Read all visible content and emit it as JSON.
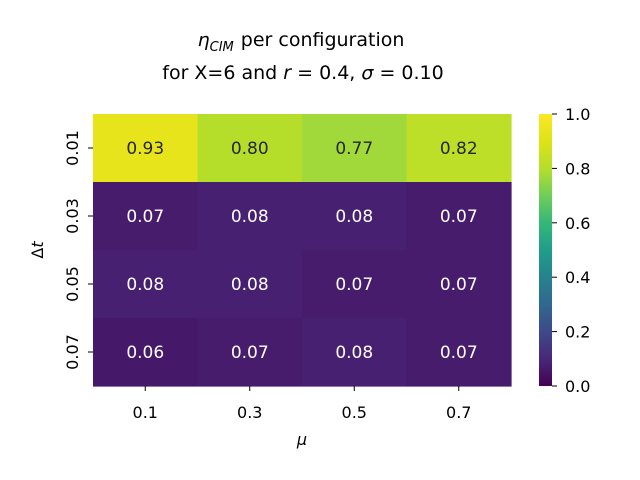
{
  "chart_data": {
    "type": "heatmap",
    "title_line1_symbol": "η",
    "title_line1_subscript": "CIM",
    "title_line1_rest": "per configuration",
    "title_line2_prefix": "for X=6 and ",
    "title_line2_r_symbol": "r",
    "title_line2_r_value": " = 0.4, ",
    "title_line2_sigma_symbol": "σ",
    "title_line2_sigma_value": " = 0.10",
    "xlabel": "μ",
    "ylabel_delta": "Δ",
    "ylabel_symbol": "t",
    "x_categories": [
      "0.1",
      "0.3",
      "0.5",
      "0.7"
    ],
    "y_categories": [
      "0.01",
      "0.03",
      "0.05",
      "0.07"
    ],
    "values": [
      [
        0.93,
        0.8,
        0.77,
        0.82
      ],
      [
        0.07,
        0.08,
        0.08,
        0.07
      ],
      [
        0.08,
        0.08,
        0.07,
        0.07
      ],
      [
        0.06,
        0.07,
        0.08,
        0.07
      ]
    ],
    "value_labels": [
      [
        "0.93",
        "0.80",
        "0.77",
        "0.82"
      ],
      [
        "0.07",
        "0.08",
        "0.08",
        "0.07"
      ],
      [
        "0.08",
        "0.08",
        "0.07",
        "0.07"
      ],
      [
        "0.06",
        "0.07",
        "0.08",
        "0.07"
      ]
    ],
    "colormap": "viridis",
    "vmin": 0.0,
    "vmax": 1.0,
    "colorbar_ticks": [
      "0.0",
      "0.2",
      "0.4",
      "0.6",
      "0.8",
      "1.0"
    ]
  }
}
